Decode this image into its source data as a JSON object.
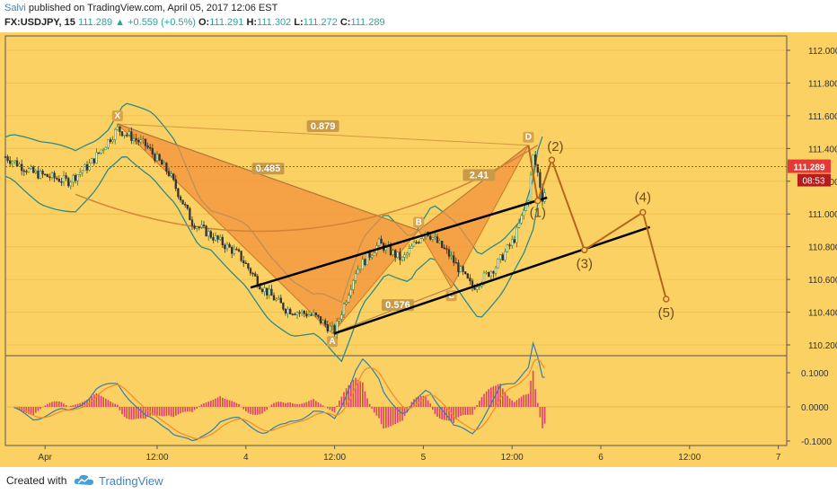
{
  "header": {
    "author": "Salvi",
    "published": "published on TradingView.com, April 05, 2017 12:06 EST",
    "symbol": "FX:USDJPY, 15",
    "last": "111.289",
    "change_arrow": "▲",
    "change": "+0.559 (+0.5%)",
    "o_label": "O:",
    "o_value": "111.291",
    "h_label": "H:",
    "h_value": "111.302",
    "l_label": "L:",
    "l_value": "111.272",
    "c_label": "C:",
    "c_value": "111.289"
  },
  "footer": {
    "created": "Created with",
    "brand": "TradingView",
    "logo_icon": "tradingview-cloud-icon"
  },
  "chart_data": {
    "type": "line",
    "price_axis": {
      "ticks": [
        "112.000",
        "111.800",
        "111.600",
        "111.400",
        "111.200",
        "111.000",
        "110.800",
        "110.600",
        "110.400",
        "110.200"
      ],
      "ylim": [
        110.15,
        112.06
      ]
    },
    "indicator_axis": {
      "ticks": [
        "0.1000",
        "0.0000",
        "-0.1000"
      ]
    },
    "time_axis": {
      "ticks": [
        "Apr",
        "12:00",
        "4",
        "12:00",
        "5",
        "12:00",
        "6",
        "12:00",
        "7"
      ]
    },
    "current_price": {
      "label": "111.289",
      "countdown": "08:53",
      "value": 111.289
    },
    "pattern_points": [
      {
        "label": "X",
        "price": 111.55
      },
      {
        "label": "A",
        "price": 110.27
      },
      {
        "label": "B",
        "price": 110.9
      },
      {
        "label": "C",
        "price": 110.55
      },
      {
        "label": "D",
        "price": 111.42
      }
    ],
    "ratios": [
      "0.879",
      "0.485",
      "2.41",
      "0.576"
    ],
    "waves": [
      {
        "label": "(1)",
        "price": 111.08
      },
      {
        "label": "(2)",
        "price": 111.33
      },
      {
        "label": "(3)",
        "price": 110.78
      },
      {
        "label": "(4)",
        "price": 111.01
      },
      {
        "label": "(5)",
        "price": 110.48
      }
    ],
    "colors": {
      "background": "#fbd164",
      "harmonic": "#f3923e",
      "price_up": "#2e7d32",
      "price_down": "#333333",
      "bollinger": "#2b8a8a",
      "wave": "#b5651d",
      "macd": "#2f7fb0",
      "signal": "#f08c2a",
      "hist": "#e0406a",
      "last_price": "#e53935"
    }
  }
}
